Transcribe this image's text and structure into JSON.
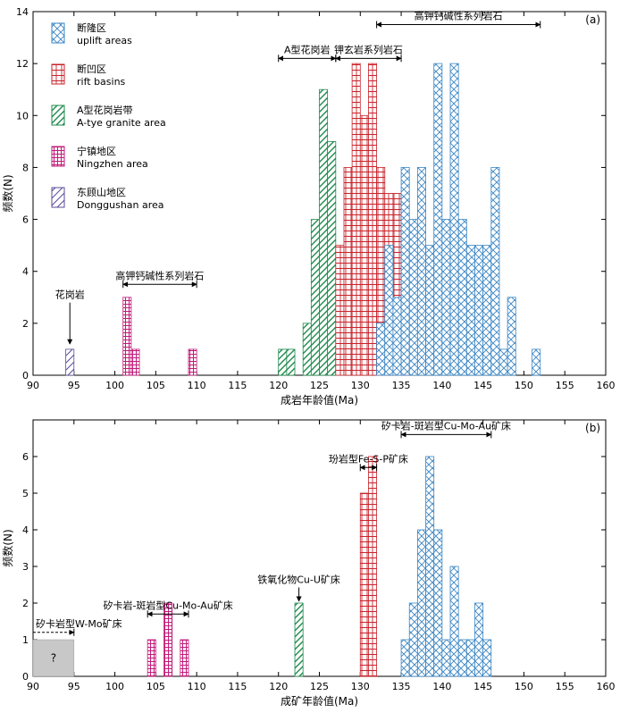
{
  "chart_data": [
    {
      "panel": "(a)",
      "type": "bar",
      "xlabel": "成岩年龄值(Ma)",
      "ylabel": "频数(N)",
      "xlim": [
        90,
        160
      ],
      "ylim": [
        0,
        14
      ],
      "x_ticks": [
        "90",
        "95",
        "100",
        "105",
        "110",
        "115",
        "120",
        "125",
        "130",
        "135",
        "140",
        "145",
        "150",
        "155",
        "160"
      ],
      "y_ticks": [
        "0",
        "2",
        "4",
        "6",
        "8",
        "10",
        "12",
        "14"
      ],
      "bin_width": 1,
      "legend_position": "top-left",
      "legend": [
        {
          "cn": "断隆区",
          "en": "uplift areas",
          "color": "#3b86c4",
          "pattern": "crosshatch"
        },
        {
          "cn": "断凹区",
          "en": "rift basins",
          "color": "#c8222a",
          "pattern": "brick"
        },
        {
          "cn": "A型花岗岩带",
          "en": "A-tye  granite area",
          "color": "#1e8a4c",
          "pattern": "diagonal"
        },
        {
          "cn": "宁镇地区",
          "en": "Ningzhen area",
          "color": "#c21a7a",
          "pattern": "grid"
        },
        {
          "cn": "东顾山地区",
          "en": "Donggushan area",
          "color": "#5a4a9a",
          "pattern": "diagonal-sparse"
        }
      ],
      "series": [
        {
          "name": "东顾山地区 Donggushan area",
          "bins": [
            [
              94,
              1
            ]
          ]
        },
        {
          "name": "宁镇地区 Ningzhen area",
          "bins": [
            [
              101,
              3
            ],
            [
              102,
              1
            ],
            [
              109,
              1
            ]
          ]
        },
        {
          "name": "A型花岗岩带 A-tye granite area",
          "bins": [
            [
              120,
              1
            ],
            [
              121,
              1
            ],
            [
              123,
              2
            ],
            [
              124,
              6
            ],
            [
              125,
              11
            ],
            [
              126,
              9
            ],
            [
              127,
              1
            ]
          ]
        },
        {
          "name": "断凹区 rift basins",
          "bins": [
            [
              127,
              5
            ],
            [
              128,
              8
            ],
            [
              129,
              12
            ],
            [
              130,
              10
            ],
            [
              131,
              12
            ],
            [
              132,
              8
            ],
            [
              133,
              7
            ],
            [
              134,
              7
            ],
            [
              135,
              1
            ]
          ]
        },
        {
          "name": "断隆区 uplift areas",
          "bins": [
            [
              132,
              2
            ],
            [
              133,
              5
            ],
            [
              134,
              3
            ],
            [
              135,
              8
            ],
            [
              136,
              6
            ],
            [
              137,
              8
            ],
            [
              138,
              5
            ],
            [
              139,
              12
            ],
            [
              140,
              6
            ],
            [
              141,
              12
            ],
            [
              142,
              6
            ],
            [
              143,
              5
            ],
            [
              144,
              5
            ],
            [
              145,
              5
            ],
            [
              146,
              8
            ],
            [
              147,
              1
            ],
            [
              148,
              3
            ],
            [
              151,
              1
            ]
          ]
        }
      ],
      "annotations": [
        {
          "text": "高钾钙碱性系列岩石",
          "x_range": [
            132,
            152
          ],
          "y": 13.5
        },
        {
          "text": "A型花岗岩",
          "x_range": [
            120,
            127
          ],
          "y": 12.2
        },
        {
          "text": "钾玄岩系列岩石",
          "x_range": [
            127,
            135
          ],
          "y": 12.2
        },
        {
          "text": "高钾钙碱性系列岩石",
          "x_range": [
            101,
            110
          ],
          "y": 3.5
        },
        {
          "text": "花岗岩",
          "x": 94.5,
          "y": 2.9,
          "arrow_to_y": 1.2
        }
      ]
    },
    {
      "panel": "(b)",
      "type": "bar",
      "xlabel": "成矿年龄值(Ma)",
      "ylabel": "频数(N)",
      "xlim": [
        90,
        160
      ],
      "ylim": [
        0,
        7
      ],
      "x_ticks": [
        "90",
        "95",
        "100",
        "105",
        "110",
        "115",
        "120",
        "125",
        "130",
        "135",
        "140",
        "145",
        "150",
        "155",
        "160"
      ],
      "y_ticks": [
        "0",
        "1",
        "2",
        "3",
        "4",
        "5",
        "6"
      ],
      "bin_width": 1,
      "series": [
        {
          "name": "宁镇地区 Ningzhen area",
          "bins": [
            [
              104,
              1
            ],
            [
              106,
              2
            ],
            [
              108,
              1
            ]
          ]
        },
        {
          "name": "A型花岗岩带 A-tye granite area",
          "bins": [
            [
              122,
              2
            ]
          ]
        },
        {
          "name": "断凹区 rift basins",
          "bins": [
            [
              130,
              5
            ],
            [
              131,
              6
            ]
          ]
        },
        {
          "name": "断隆区 uplift areas",
          "bins": [
            [
              135,
              1
            ],
            [
              136,
              2
            ],
            [
              137,
              4
            ],
            [
              138,
              6
            ],
            [
              139,
              4
            ],
            [
              140,
              1
            ],
            [
              141,
              3
            ],
            [
              142,
              1
            ],
            [
              143,
              1
            ],
            [
              144,
              2
            ],
            [
              145,
              1
            ]
          ]
        }
      ],
      "unknown_box": {
        "label": "?",
        "x_range": [
          90,
          95
        ],
        "height": 1,
        "color": "#c8c8c8"
      },
      "annotations": [
        {
          "text": "矽卡岩-斑岩型Cu-Mo-Au矿床",
          "x_range": [
            135,
            146
          ],
          "y": 6.6
        },
        {
          "text": "玢岩型Fe-S-P矿床",
          "x_range": [
            130,
            132
          ],
          "y": 5.7
        },
        {
          "text": "铁氧化物Cu-U矿床",
          "x": 122.5,
          "y": 2.5,
          "arrow_to_y": 2.05
        },
        {
          "text": "矽卡岩-斑岩型Cu-Mo-Au矿床",
          "x_range": [
            104,
            109
          ],
          "y": 1.7
        },
        {
          "text": "矽卡岩型W-Mo矿床",
          "x_range": [
            90,
            95
          ],
          "y": 1.2,
          "dashed": true
        }
      ]
    }
  ],
  "panel_labels": [
    "(a)",
    "(b)"
  ]
}
